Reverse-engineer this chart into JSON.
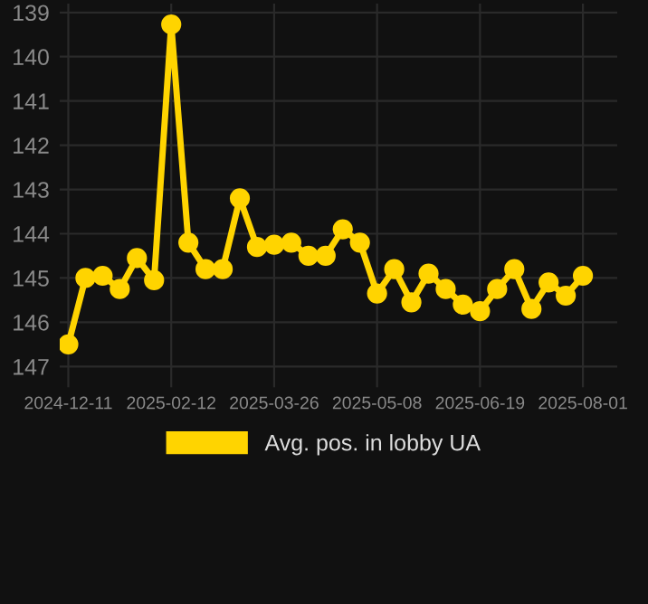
{
  "chart_data": {
    "type": "line",
    "categories": [
      "2024-12-11",
      null,
      null,
      null,
      null,
      null,
      "2025-02-12",
      null,
      null,
      null,
      null,
      null,
      "2025-03-26",
      null,
      null,
      null,
      null,
      null,
      "2025-05-08",
      null,
      null,
      null,
      null,
      null,
      "2025-06-19",
      null,
      null,
      null,
      null,
      null,
      "2025-08-01"
    ],
    "series": [
      {
        "name": "Avg. pos. in lobby UA",
        "color": "#ffd400",
        "values": [
          146.5,
          145.0,
          144.95,
          145.25,
          144.55,
          145.05,
          139.27,
          144.2,
          144.8,
          144.8,
          143.2,
          144.3,
          144.25,
          144.2,
          144.5,
          144.5,
          143.9,
          144.2,
          145.35,
          144.8,
          145.55,
          144.9,
          145.25,
          145.6,
          145.75,
          145.25,
          144.8,
          145.7,
          145.1,
          145.4,
          144.95
        ]
      }
    ],
    "ylim": [
      147.3,
      138.8
    ],
    "yticks": [
      139,
      140,
      141,
      142,
      143,
      144,
      145,
      146,
      147
    ],
    "grid": true,
    "legend": "bottom",
    "marker": "circle",
    "line_style": "solid"
  }
}
